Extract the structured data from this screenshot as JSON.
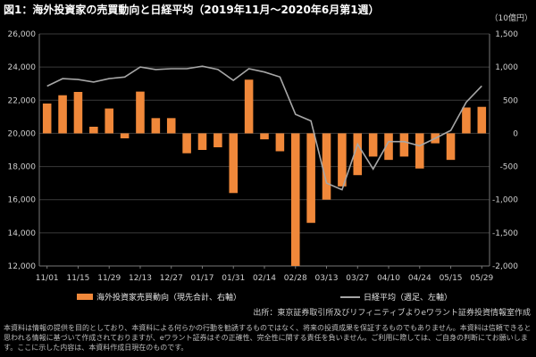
{
  "title": "図1：海外投資家の売買動向と日経平均（2019年11月～2020年6月第1週）",
  "unit": "（10億円）",
  "legend": {
    "bars": "海外投資家売買動向（現先合計、右軸）",
    "line": "日経平均（週足、左軸）"
  },
  "source": "出所：東京証券取引所及びリフィニティブよりeワラント証券投資情報室作成",
  "footer": "本資料は情報の提供を目的としており、本資料による何らかの行動を勧誘するものではなく、将来の投資成果を保証するものでもありません。本資料は信頼できると思われる情報に基づいて作成されておりますが、eワラント証券はその正確性、完全性に関する責任を負いません。ご利用に際しては、ご自身の判断にてお願いします。ここに示した内容は、本資料作成日現在のものです。",
  "colors": {
    "bar": "#f0883a",
    "line": "#a6a6a6",
    "grid": "#3a3a3a",
    "background": "#000000"
  },
  "chart_data": {
    "type": "bar",
    "grid": true,
    "legend_position": "bottom",
    "left_axis": {
      "min": 12000,
      "max": 26000,
      "ticks": [
        "12,000",
        "14,000",
        "16,000",
        "18,000",
        "20,000",
        "22,000",
        "24,000",
        "26,000"
      ]
    },
    "right_axis": {
      "min": -2000,
      "max": 1500,
      "ticks": [
        "-2,000",
        "-1,500",
        "-1,000",
        "-500",
        "0",
        "500",
        "1,000",
        "1,500"
      ]
    },
    "x_tick_labels": [
      "11/01",
      "11/15",
      "11/29",
      "12/13",
      "12/27",
      "01/17",
      "01/31",
      "02/14",
      "02/28",
      "03/13",
      "03/27",
      "04/10",
      "04/24",
      "05/15",
      "05/29"
    ],
    "series": [
      {
        "name": "海外投資家売買動向（現先合計、右軸）",
        "type": "bar",
        "axis": "right",
        "values": [
          450,
          575,
          625,
          100,
          375,
          -75,
          630,
          230,
          230,
          -300,
          -250,
          -210,
          -900,
          810,
          -90,
          -270,
          -2000,
          -1350,
          -1000,
          -800,
          -630,
          -350,
          -400,
          -350,
          -530,
          -150,
          -400,
          390,
          400
        ]
      },
      {
        "name": "日経平均（週足、左軸）",
        "type": "line",
        "axis": "left",
        "values": [
          22850,
          23300,
          23250,
          23100,
          23300,
          23400,
          24000,
          23850,
          23900,
          23900,
          24050,
          23850,
          23200,
          23900,
          23700,
          23400,
          21150,
          20750,
          17000,
          16600,
          19350,
          17850,
          19500,
          19500,
          19250,
          19700,
          20180,
          21880,
          22860
        ]
      }
    ]
  }
}
